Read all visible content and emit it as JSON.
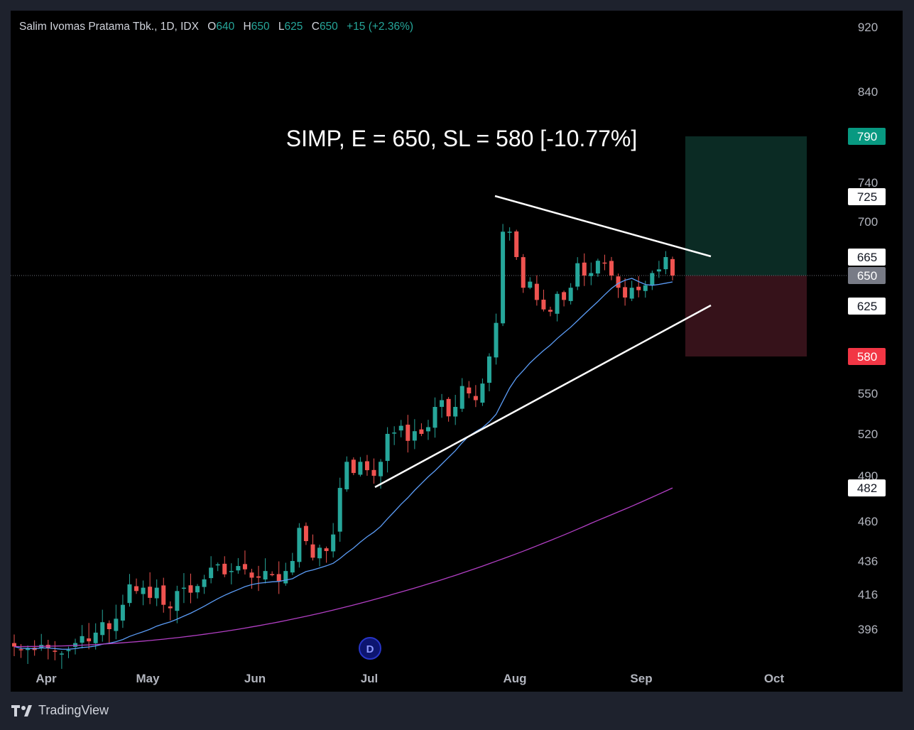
{
  "header": {
    "symbol": "Salim Ivomas Pratama Tbk., 1D, IDX",
    "open_label": "O",
    "open": "640",
    "high_label": "H",
    "high": "650",
    "low_label": "L",
    "low": "625",
    "close_label": "C",
    "close": "650",
    "change": "+15 (+2.36%)"
  },
  "footer": {
    "brand": "TradingView",
    "logo_icon": "tradingview-logo-icon"
  },
  "chart_data": {
    "type": "candlestick",
    "annotation": "SIMP, E = 650, SL = 580 [-10.77%]",
    "x_ticks": [
      "Apr",
      "May",
      "Jun",
      "Jul",
      "Aug",
      "Sep",
      "Oct"
    ],
    "y_ticks": [
      396,
      416,
      436,
      460,
      490,
      520,
      550,
      580,
      625,
      650,
      665,
      700,
      725,
      740,
      790,
      840,
      920
    ],
    "y_badges": [
      {
        "value": "790",
        "style": "green"
      },
      {
        "value": "725",
        "style": "white"
      },
      {
        "value": "665",
        "style": "white"
      },
      {
        "value": "650",
        "style": "gray"
      },
      {
        "value": "625",
        "style": "white"
      },
      {
        "value": "580",
        "style": "red"
      },
      {
        "value": "482",
        "style": "white"
      }
    ],
    "y_tick_labels_shown": [
      "920",
      "840",
      "740",
      "700",
      "550",
      "520",
      "490",
      "460",
      "436",
      "416",
      "396"
    ],
    "current_price": 650,
    "entry": 650,
    "target": 790,
    "stop_loss": 580,
    "dividend_marker": {
      "date": "Jul",
      "label": "D"
    },
    "colors": {
      "up": "#26a69a",
      "down": "#ef5350",
      "ma_short": "#5b9cf6",
      "ma_long": "#b23fc4",
      "trend": "#ffffff",
      "target_zone": "#0b2b24",
      "stop_zone": "#36121a"
    },
    "trendlines": [
      {
        "from": {
          "x": "Aug",
          "y": 725
        },
        "to": {
          "x": "Sep",
          "y": 665
        }
      },
      {
        "from": {
          "x": "Jul",
          "y": 482
        },
        "to": {
          "x": "Sep",
          "y": 625
        }
      }
    ],
    "ohlc_close_series_approx": [
      386,
      384,
      385,
      384,
      387,
      385,
      383,
      382,
      384,
      388,
      392,
      389,
      394,
      400,
      396,
      402,
      410,
      422,
      418,
      420,
      414,
      420,
      410,
      408,
      418,
      420,
      417,
      421,
      425,
      432,
      434,
      428,
      430,
      433,
      431,
      426,
      426,
      430,
      428,
      424,
      430,
      436,
      456,
      448,
      438,
      444,
      442,
      452,
      482,
      500,
      492,
      500,
      494,
      490,
      500,
      520,
      521,
      526,
      515,
      522,
      520,
      525,
      540,
      545,
      533,
      540,
      556,
      550,
      545,
      558,
      580,
      610,
      690,
      690,
      665,
      640,
      645,
      630,
      622,
      620,
      635,
      630,
      640,
      660,
      650,
      652,
      662,
      660,
      650,
      640,
      632,
      640,
      638,
      642,
      652,
      655,
      665,
      650
    ]
  }
}
